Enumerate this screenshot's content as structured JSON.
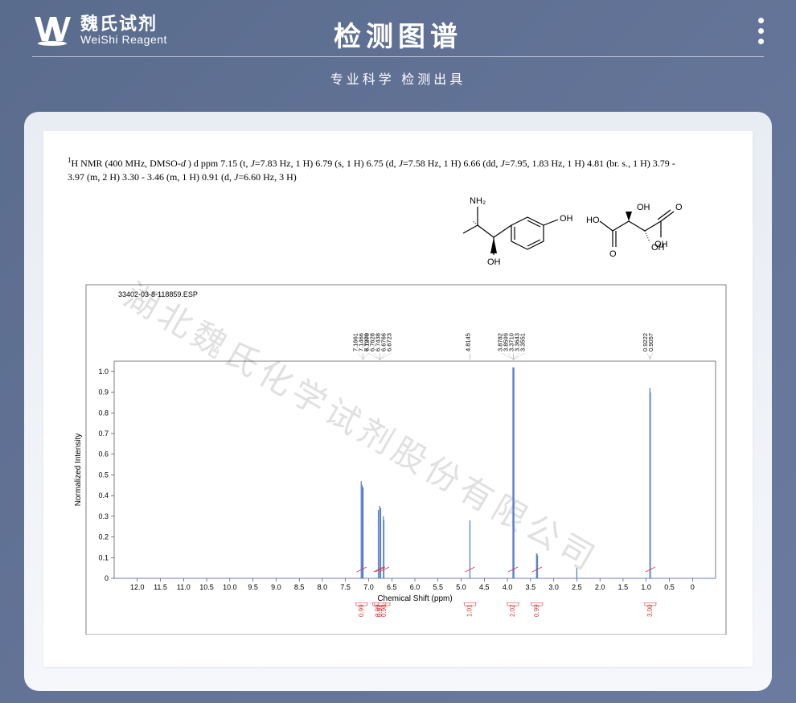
{
  "header": {
    "logo_cn": "魏氏试剂",
    "logo_en": "WeiShi Reagent",
    "title": "检测图谱",
    "subtitle": "专业科学  检测出具"
  },
  "nmr_description": {
    "line1_a": "1",
    "line1_b": "H NMR (400 MHz, DMSO-",
    "line1_c": "d",
    "line1_d": " ) d ppm 7.15 (t, ",
    "line1_e": "J",
    "line1_f": "=7.83 Hz, 1 H) 6.79 (s, 1 H) 6.75 (d, ",
    "line1_g": "J",
    "line1_h": "=7.58 Hz, 1 H) 6.66 (dd, ",
    "line1_i": "J",
    "line1_j": "=7.95, 1.83 Hz, 1 H) 4.81 (br. s., 1 H) 3.79 -",
    "line2_a": "3.97 (m, 2 H) 3.30 - 3.46 (m, 1 H) 0.91 (d, ",
    "line2_b": "J",
    "line2_c": "=6.60 Hz, 3 H)"
  },
  "structure_labels": {
    "nh2": "NH₂",
    "oh1": "OH",
    "oh2": "OH",
    "ho": "HO",
    "oh3": "OH",
    "oh4": "OH",
    "o1": "O",
    "o2": "O"
  },
  "spectrum": {
    "file_label": "33402-03-8-118859.ESP",
    "x_axis_label": "Chemical Shift (ppm)",
    "y_axis_label": "Normalized Intensity",
    "y_ticks": [
      "0",
      "0.1",
      "0.2",
      "0.3",
      "0.4",
      "0.5",
      "0.6",
      "0.7",
      "0.8",
      "0.9",
      "1.0"
    ],
    "x_ticks": [
      "12.0",
      "11.5",
      "11.0",
      "10.5",
      "10.0",
      "9.5",
      "9.0",
      "8.5",
      "8.0",
      "7.5",
      "7.0",
      "6.5",
      "6.0",
      "5.5",
      "5.0",
      "4.5",
      "4.0",
      "3.5",
      "3.0",
      "2.5",
      "2.0",
      "1.5",
      "1.0",
      "0.5",
      "0"
    ],
    "peaks": [
      {
        "x": 7.16,
        "h": 0.47,
        "group": "a"
      },
      {
        "x": 7.14,
        "h": 0.45,
        "group": "a"
      },
      {
        "x": 7.12,
        "h": 0.44,
        "group": "a"
      },
      {
        "x": 6.79,
        "h": 0.33,
        "group": "b"
      },
      {
        "x": 6.76,
        "h": 0.35,
        "group": "c"
      },
      {
        "x": 6.74,
        "h": 0.34,
        "group": "c"
      },
      {
        "x": 6.68,
        "h": 0.3,
        "group": "d"
      },
      {
        "x": 6.67,
        "h": 0.28,
        "group": "d"
      },
      {
        "x": 4.81,
        "h": 0.28,
        "group": "e"
      },
      {
        "x": 3.88,
        "h": 1.02,
        "group": "f"
      },
      {
        "x": 3.86,
        "h": 1.02,
        "group": "f"
      },
      {
        "x": 3.37,
        "h": 0.12,
        "group": "g"
      },
      {
        "x": 3.36,
        "h": 0.12,
        "group": "g"
      },
      {
        "x": 3.35,
        "h": 0.11,
        "group": "g"
      },
      {
        "x": 2.5,
        "h": 0.05,
        "group": "s"
      },
      {
        "x": 0.92,
        "h": 0.92,
        "group": "h"
      },
      {
        "x": 0.91,
        "h": 0.9,
        "group": "h"
      }
    ],
    "peak_labels": [
      {
        "x": 7.12,
        "labels": [
          "7.1661",
          "7.1466",
          "7.1270"
        ]
      },
      {
        "x": 6.76,
        "labels": [
          "6.7903",
          "6.7628",
          "6.7438",
          "6.6766",
          "6.6723"
        ]
      },
      {
        "x": 4.81,
        "labels": [
          "4.8145"
        ]
      },
      {
        "x": 3.87,
        "labels": [
          "3.8782",
          "3.8599",
          "3.3710",
          "3.3643",
          "3.3551"
        ]
      },
      {
        "x": 0.92,
        "labels": [
          "0.9222",
          "0.9057"
        ]
      }
    ],
    "integrals": [
      {
        "x": 7.15,
        "label": "0.99"
      },
      {
        "x": 6.79,
        "label": "0.99"
      },
      {
        "x": 6.75,
        "label": "0.97"
      },
      {
        "x": 6.66,
        "label": "0.98"
      },
      {
        "x": 4.81,
        "label": "1.01"
      },
      {
        "x": 3.88,
        "label": "2.02"
      },
      {
        "x": 3.36,
        "label": "0.99"
      },
      {
        "x": 0.91,
        "label": "3.00"
      }
    ],
    "integral_color": "#d93838",
    "peak_color": "#5b7fd1",
    "axis_color": "#000000",
    "tick_font_size": 9,
    "label_font_size": 10,
    "background": "#ffffff",
    "xlim": [
      -0.5,
      12.5
    ],
    "ylim": [
      0,
      1.05
    ]
  },
  "watermark": "湖北魏氏化学试剂股份有限公司"
}
